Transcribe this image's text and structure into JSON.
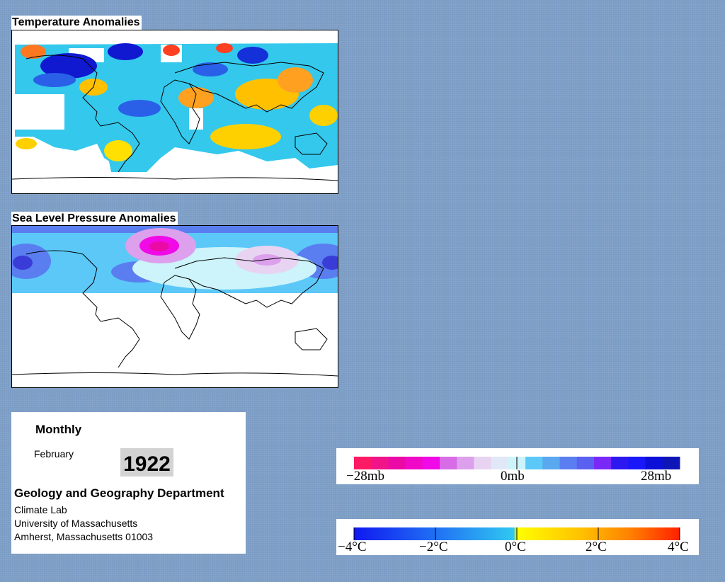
{
  "temperature_map": {
    "title": "Temperature Anomalies"
  },
  "pressure_map": {
    "title": "Sea Level Pressure Anomalies"
  },
  "info": {
    "period": "Monthly",
    "month": "February",
    "year": "1922",
    "department": "Geology and Geography Department",
    "lab": "Climate Lab",
    "university": "University of Massachusetts",
    "address": "Amherst, Massachusetts 01003"
  },
  "pressure_legend": {
    "labels": [
      "−28mb",
      "0mb",
      "28mb"
    ],
    "colors": [
      "#ff1a66",
      "#f01488",
      "#ec0aa6",
      "#f00ac8",
      "#f00ae8",
      "#d86ce6",
      "#dca0ec",
      "#e8d4f2",
      "#e0e8f8",
      "#ccf4fa",
      "#5cc8f8",
      "#5aa8f0",
      "#5a7ef0",
      "#5a60f0",
      "#7a28f8",
      "#2e18f0",
      "#1a18f8",
      "#0c10d8",
      "#0e16b8"
    ]
  },
  "temperature_legend": {
    "labels": [
      "−4°C",
      "−2°C",
      "0°C",
      "2°C",
      "4°C"
    ],
    "colors": [
      "#1018f0",
      "#2070f4",
      "#30c8f0",
      "#ffff00",
      "#ffc000",
      "#ff8000",
      "#ff2000"
    ]
  }
}
